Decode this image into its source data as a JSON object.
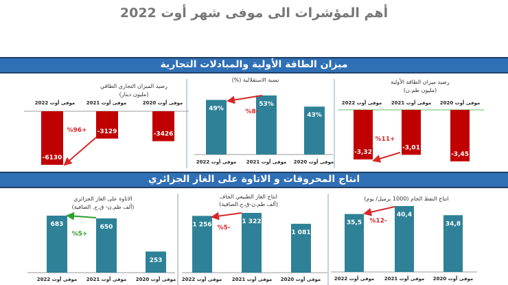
{
  "page_title": "أهم المؤشرات الى موفى شهر أوت 2022",
  "sections": [
    {
      "title": "ميزان الطاقة الأولية والمبادلات التجارية"
    },
    {
      "title": "انتاج المحروقات و الاتاوة على الغاز الجزائري"
    }
  ],
  "colors": {
    "negative_bar": "#c00000",
    "positive_bar": "#2e8197",
    "banner": "#2f6fb5",
    "down_arrow": "#d62728",
    "up_arrow": "#2ca02c"
  },
  "chart_data": [
    {
      "type": "bar",
      "title": [
        "رصيد الميزان التجاري الطاقي",
        "(مليون دينار)"
      ],
      "categories": [
        "موفى أوت 2022",
        "موفى أوت 2021",
        "موفى أوت 2020"
      ],
      "values": [
        -6130,
        -3129,
        -3426
      ],
      "labels": [
        "-6130",
        "-3129",
        "-3426"
      ],
      "change": "%96+"
    },
    {
      "type": "bar",
      "title": [
        "نسبة الاستقلالية (%)"
      ],
      "categories": [
        "موفى أوت 2022",
        "موفى أوت 2021",
        "موفى أوت 2020"
      ],
      "values": [
        49,
        53,
        43
      ],
      "labels": [
        "49%",
        "53%",
        "43%"
      ],
      "change": "%8-"
    },
    {
      "type": "bar",
      "title": [
        "رصيد ميزان الطاقة الأولية",
        "(مليون طم.ن)"
      ],
      "categories": [
        "موفى أوت 2022",
        "موفى أوت 2021",
        "موفى أوت 2020"
      ],
      "values": [
        -3.32,
        -3.01,
        -3.45
      ],
      "labels": [
        "-3,32",
        "-3,01",
        "-3,45"
      ],
      "change": "%11+"
    },
    {
      "type": "bar",
      "title": [
        "الاتاوة على الغاز الجزائري",
        "(ألف طم.ن- ق.ح. الصافية)"
      ],
      "categories": [
        "موفى أوت 2022",
        "موفى أوت 2021",
        "موفى أوت 2020"
      ],
      "values": [
        683,
        650,
        253
      ],
      "labels": [
        "683",
        "650",
        "253"
      ],
      "change": "%5+"
    },
    {
      "type": "bar",
      "title": [
        "انتاج الغاز الطبيعي الجاف",
        "(ألف طم.ن-ق.ح.الصافية)"
      ],
      "categories": [
        "موفى أوت 2022",
        "موفى أوت 2021",
        "موفى أوت 2020"
      ],
      "values": [
        1256,
        1322,
        1081
      ],
      "labels": [
        "1 256",
        "1 322",
        "1 081"
      ],
      "change": "%5-"
    },
    {
      "type": "bar",
      "title": [
        "انتاج النفط الخام (1000 برميل/ يوم)"
      ],
      "categories": [
        "موفى أوت 2022",
        "موفى أوت 2021",
        "موفى أوت 2020"
      ],
      "values": [
        35.5,
        40.4,
        34.8
      ],
      "labels": [
        "35,5",
        "40,4",
        "34,8"
      ],
      "change": "%12-"
    }
  ]
}
